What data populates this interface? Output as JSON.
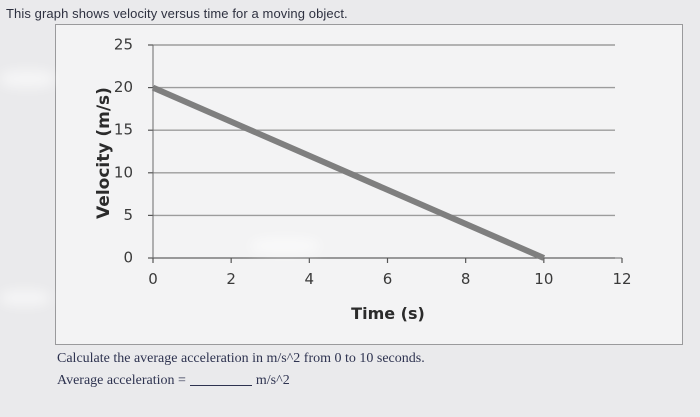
{
  "prompt_text": "This graph shows velocity versus time for a moving object.",
  "question": {
    "text": "Calculate the average acceleration in m/s^2 from 0 to 10 seconds.",
    "answer_label": "Average acceleration =",
    "answer_value": "",
    "answer_unit": "m/s^2"
  },
  "colors": {
    "line": "#7f7f7f",
    "gridline": "#9c9c9c",
    "background": "#f3f3f4"
  },
  "chart_data": {
    "type": "line",
    "title": "",
    "xlabel": "Time (s)",
    "ylabel": "Velocity (m/s)",
    "xlim": [
      0,
      12
    ],
    "ylim": [
      0,
      25
    ],
    "x_ticks": [
      0,
      2,
      4,
      6,
      8,
      10,
      12
    ],
    "y_ticks": [
      0,
      5,
      10,
      15,
      20,
      25
    ],
    "grid": true,
    "legend": "none",
    "series": [
      {
        "x": [
          0,
          10
        ],
        "y": [
          20,
          0
        ]
      }
    ]
  }
}
